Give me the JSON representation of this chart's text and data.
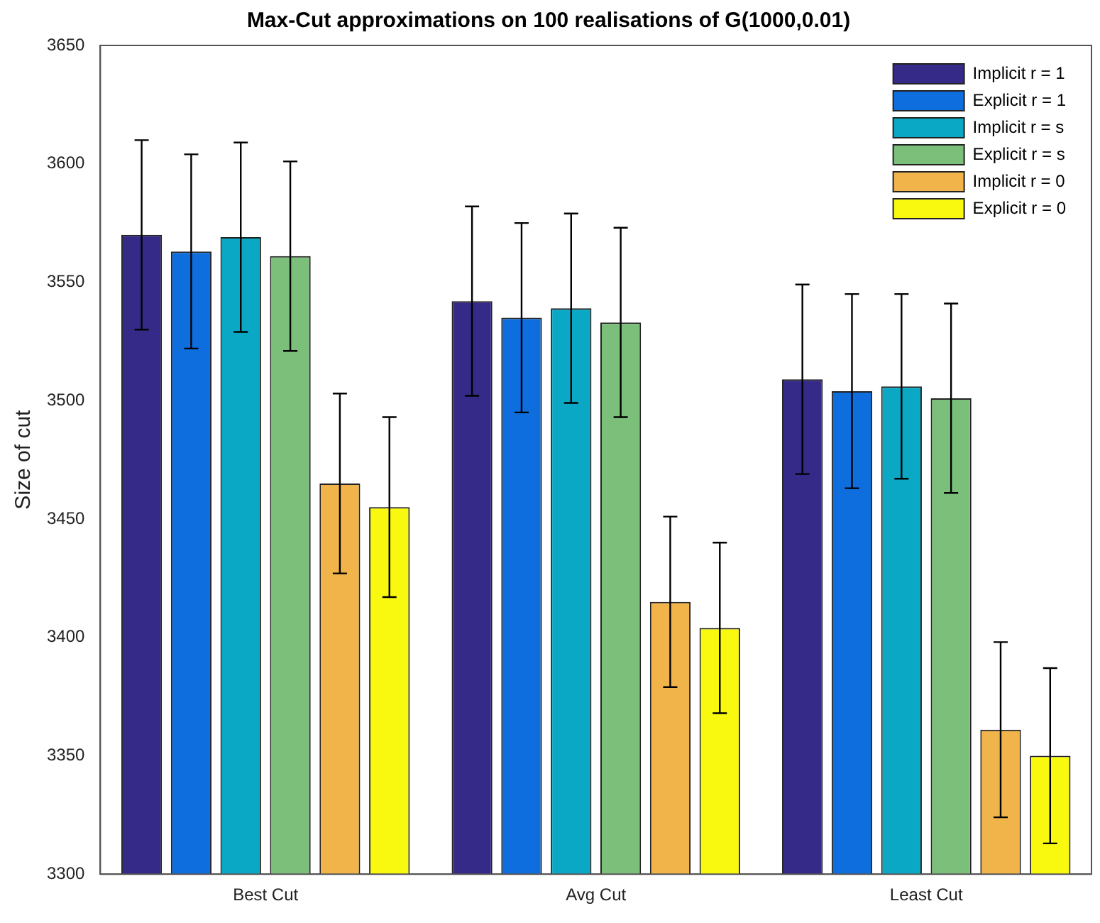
{
  "chart_data": {
    "type": "bar",
    "title": "Max-Cut approximations on 100 realisations of G(1000,0.01)",
    "ylabel": "Size of cut",
    "categories": [
      "Best Cut",
      "Avg Cut",
      "Least Cut"
    ],
    "series": [
      {
        "name": "Implicit r = 1",
        "color": "#352a87",
        "values": [
          3570,
          3542,
          3509
        ],
        "errors": [
          40,
          40,
          40
        ]
      },
      {
        "name": "Explicit r = 1",
        "color": "#0f6ede",
        "values": [
          3563,
          3535,
          3504
        ],
        "errors": [
          41,
          40,
          41
        ]
      },
      {
        "name": "Implicit r = s",
        "color": "#0aa8c4",
        "values": [
          3569,
          3539,
          3506
        ],
        "errors": [
          40,
          40,
          39
        ]
      },
      {
        "name": "Explicit r = s",
        "color": "#7cbf7b",
        "values": [
          3561,
          3533,
          3501
        ],
        "errors": [
          40,
          40,
          40
        ]
      },
      {
        "name": "Implicit r = 0",
        "color": "#f0b44b",
        "values": [
          3465,
          3415,
          3361
        ],
        "errors": [
          38,
          36,
          37
        ]
      },
      {
        "name": "Explicit r = 0",
        "color": "#f9f90f",
        "values": [
          3455,
          3404,
          3350
        ],
        "errors": [
          38,
          36,
          37
        ]
      }
    ],
    "ylim": [
      3300,
      3650
    ],
    "yticks": [
      3300,
      3350,
      3400,
      3450,
      3500,
      3550,
      3600,
      3650
    ],
    "grid": false,
    "legend": "top right"
  }
}
